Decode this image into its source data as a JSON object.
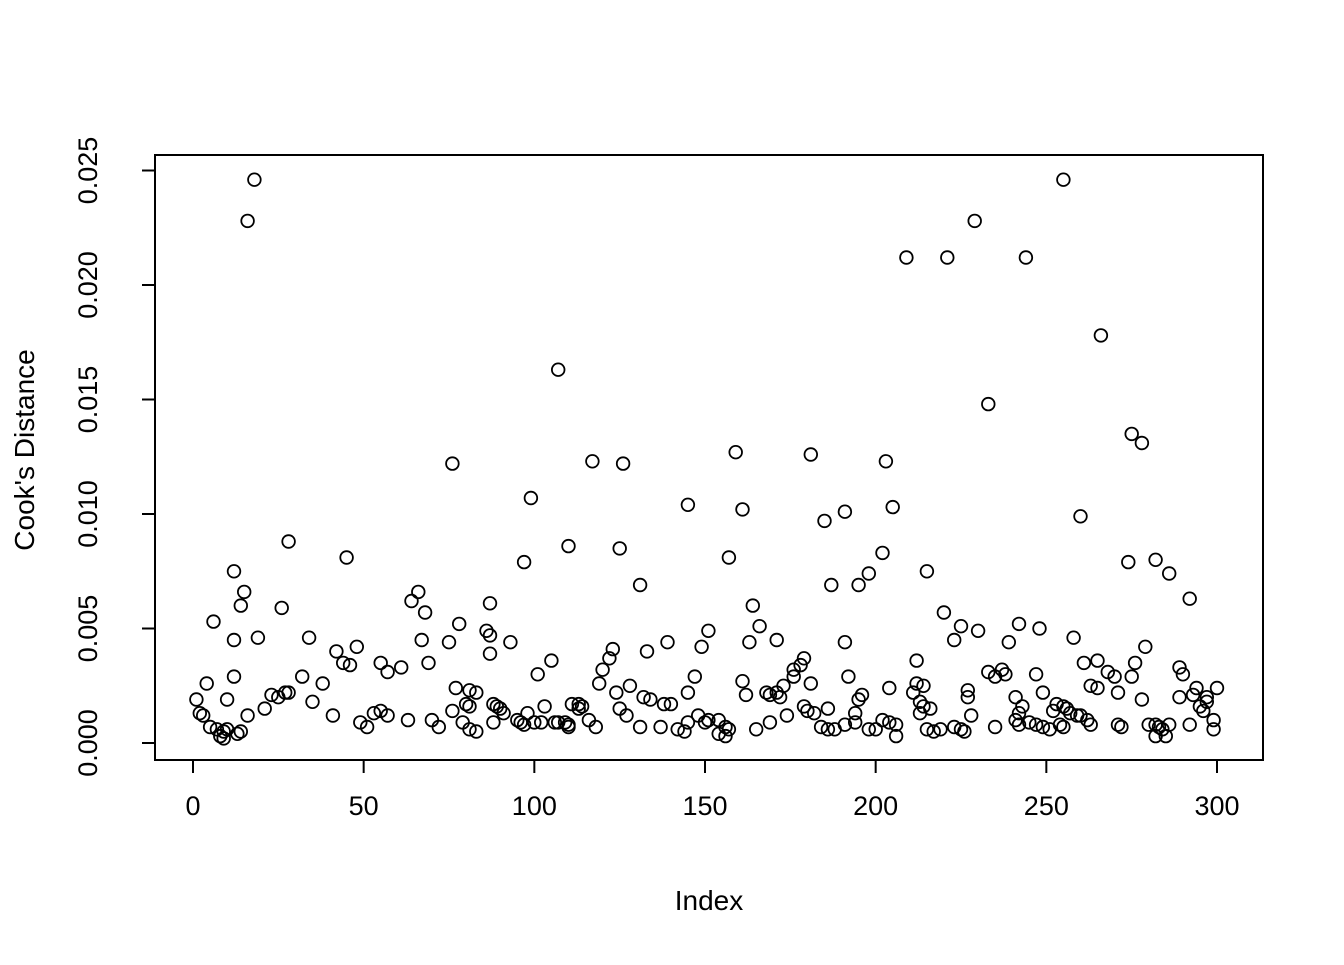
{
  "figure": {
    "background": "#ffffff",
    "frame_color": "#000000"
  },
  "chart_data": {
    "type": "scatter",
    "title": "",
    "xlabel": "Index",
    "ylabel": "Cook's Distance",
    "xlim": [
      0,
      300
    ],
    "ylim": [
      0,
      0.025
    ],
    "grid": false,
    "legend": null,
    "marker": "open-circle",
    "point_color": "#000000",
    "xticks": {
      "values": [
        0,
        50,
        100,
        150,
        200,
        250,
        300
      ],
      "labels": [
        "0",
        "50",
        "100",
        "150",
        "200",
        "250",
        "300"
      ]
    },
    "yticks": {
      "values": [
        0,
        0.005,
        0.01,
        0.015,
        0.02,
        0.025
      ],
      "labels": [
        "0.000",
        "0.005",
        "0.010",
        "0.015",
        "0.020",
        "0.025"
      ]
    },
    "points": [
      [
        1,
        0.0019
      ],
      [
        2,
        0.0013
      ],
      [
        3,
        0.0012
      ],
      [
        4,
        0.0026
      ],
      [
        5,
        0.0007
      ],
      [
        6,
        0.0053
      ],
      [
        7,
        0.0006
      ],
      [
        8,
        0.0003
      ],
      [
        9,
        0.0005
      ],
      [
        9,
        0.0002
      ],
      [
        10,
        0.0019
      ],
      [
        10,
        0.0006
      ],
      [
        12,
        0.0075
      ],
      [
        12,
        0.0045
      ],
      [
        12,
        0.0029
      ],
      [
        13,
        0.0004
      ],
      [
        14,
        0.006
      ],
      [
        14,
        0.0005
      ],
      [
        15,
        0.0066
      ],
      [
        16,
        0.0228
      ],
      [
        16,
        0.0012
      ],
      [
        18,
        0.0246
      ],
      [
        19,
        0.0046
      ],
      [
        21,
        0.0015
      ],
      [
        23,
        0.0021
      ],
      [
        25,
        0.002
      ],
      [
        26,
        0.0059
      ],
      [
        27,
        0.0022
      ],
      [
        28,
        0.0088
      ],
      [
        28,
        0.0022
      ],
      [
        32,
        0.0029
      ],
      [
        34,
        0.0046
      ],
      [
        35,
        0.0018
      ],
      [
        38,
        0.0026
      ],
      [
        41,
        0.0012
      ],
      [
        42,
        0.004
      ],
      [
        44,
        0.0035
      ],
      [
        45,
        0.0081
      ],
      [
        46,
        0.0034
      ],
      [
        48,
        0.0042
      ],
      [
        49,
        0.0009
      ],
      [
        51,
        0.0007
      ],
      [
        53,
        0.0013
      ],
      [
        55,
        0.0035
      ],
      [
        55,
        0.0014
      ],
      [
        57,
        0.0031
      ],
      [
        57,
        0.0012
      ],
      [
        61,
        0.0033
      ],
      [
        63,
        0.001
      ],
      [
        64,
        0.0062
      ],
      [
        66,
        0.0066
      ],
      [
        67,
        0.0045
      ],
      [
        68,
        0.0057
      ],
      [
        69,
        0.0035
      ],
      [
        70,
        0.001
      ],
      [
        72,
        0.0007
      ],
      [
        75,
        0.0044
      ],
      [
        76,
        0.0122
      ],
      [
        76,
        0.0014
      ],
      [
        77,
        0.0024
      ],
      [
        78,
        0.0052
      ],
      [
        79,
        0.0009
      ],
      [
        80,
        0.0017
      ],
      [
        81,
        0.0023
      ],
      [
        81,
        0.0016
      ],
      [
        81,
        0.0006
      ],
      [
        83,
        0.0022
      ],
      [
        83,
        0.0005
      ],
      [
        86,
        0.0049
      ],
      [
        87,
        0.0061
      ],
      [
        87,
        0.0047
      ],
      [
        87,
        0.0039
      ],
      [
        88,
        0.0017
      ],
      [
        88,
        0.0009
      ],
      [
        89,
        0.0016
      ],
      [
        90,
        0.0015
      ],
      [
        91,
        0.0013
      ],
      [
        93,
        0.0044
      ],
      [
        95,
        0.001
      ],
      [
        96,
        0.0009
      ],
      [
        97,
        0.0079
      ],
      [
        97,
        0.0008
      ],
      [
        98,
        0.0013
      ],
      [
        99,
        0.0107
      ],
      [
        100,
        0.0009
      ],
      [
        101,
        0.003
      ],
      [
        102,
        0.0009
      ],
      [
        103,
        0.0016
      ],
      [
        105,
        0.0036
      ],
      [
        106,
        0.0009
      ],
      [
        107,
        0.0163
      ],
      [
        107,
        0.0009
      ],
      [
        109,
        0.0009
      ],
      [
        110,
        0.0086
      ],
      [
        110,
        0.0008
      ],
      [
        110,
        0.0007
      ],
      [
        111,
        0.0017
      ],
      [
        113,
        0.0017
      ],
      [
        113,
        0.0015
      ],
      [
        114,
        0.0016
      ],
      [
        116,
        0.001
      ],
      [
        117,
        0.0123
      ],
      [
        118,
        0.0007
      ],
      [
        119,
        0.0026
      ],
      [
        120,
        0.0032
      ],
      [
        122,
        0.0037
      ],
      [
        123,
        0.0041
      ],
      [
        124,
        0.0022
      ],
      [
        125,
        0.0085
      ],
      [
        125,
        0.0015
      ],
      [
        126,
        0.0122
      ],
      [
        127,
        0.0012
      ],
      [
        128,
        0.0025
      ],
      [
        131,
        0.0069
      ],
      [
        131,
        0.0007
      ],
      [
        132,
        0.002
      ],
      [
        133,
        0.004
      ],
      [
        134,
        0.0019
      ],
      [
        137,
        0.0007
      ],
      [
        138,
        0.0017
      ],
      [
        139,
        0.0044
      ],
      [
        140,
        0.0017
      ],
      [
        142,
        0.0006
      ],
      [
        144,
        0.0005
      ],
      [
        145,
        0.0104
      ],
      [
        145,
        0.0022
      ],
      [
        145,
        0.0009
      ],
      [
        147,
        0.0029
      ],
      [
        148,
        0.0012
      ],
      [
        149,
        0.0042
      ],
      [
        150,
        0.0009
      ],
      [
        151,
        0.0049
      ],
      [
        151,
        0.001
      ],
      [
        154,
        0.001
      ],
      [
        154,
        0.0004
      ],
      [
        156,
        0.0007
      ],
      [
        156,
        0.0003
      ],
      [
        157,
        0.0081
      ],
      [
        157,
        0.0006
      ],
      [
        159,
        0.0127
      ],
      [
        161,
        0.0102
      ],
      [
        161,
        0.0027
      ],
      [
        162,
        0.0021
      ],
      [
        163,
        0.0044
      ],
      [
        164,
        0.006
      ],
      [
        165,
        0.0006
      ],
      [
        166,
        0.0051
      ],
      [
        168,
        0.0022
      ],
      [
        169,
        0.0021
      ],
      [
        169,
        0.0009
      ],
      [
        171,
        0.0045
      ],
      [
        171,
        0.0022
      ],
      [
        172,
        0.002
      ],
      [
        173,
        0.0025
      ],
      [
        174,
        0.0012
      ],
      [
        176,
        0.0032
      ],
      [
        176,
        0.0029
      ],
      [
        178,
        0.0034
      ],
      [
        179,
        0.0037
      ],
      [
        179,
        0.0016
      ],
      [
        180,
        0.0014
      ],
      [
        181,
        0.0126
      ],
      [
        181,
        0.0026
      ],
      [
        182,
        0.0013
      ],
      [
        184,
        0.0007
      ],
      [
        185,
        0.0097
      ],
      [
        186,
        0.0015
      ],
      [
        186,
        0.0006
      ],
      [
        187,
        0.0069
      ],
      [
        188,
        0.0006
      ],
      [
        191,
        0.0101
      ],
      [
        191,
        0.0044
      ],
      [
        191,
        0.0008
      ],
      [
        192,
        0.0029
      ],
      [
        194,
        0.0013
      ],
      [
        194,
        0.0009
      ],
      [
        195,
        0.0069
      ],
      [
        195,
        0.0019
      ],
      [
        196,
        0.0021
      ],
      [
        198,
        0.0074
      ],
      [
        198,
        0.0006
      ],
      [
        200,
        0.0006
      ],
      [
        202,
        0.0083
      ],
      [
        202,
        0.001
      ],
      [
        203,
        0.0123
      ],
      [
        204,
        0.0024
      ],
      [
        204,
        0.0009
      ],
      [
        205,
        0.0103
      ],
      [
        206,
        0.0008
      ],
      [
        206,
        0.0003
      ],
      [
        209,
        0.0212
      ],
      [
        211,
        0.0022
      ],
      [
        212,
        0.0036
      ],
      [
        212,
        0.0026
      ],
      [
        213,
        0.0018
      ],
      [
        213,
        0.0013
      ],
      [
        214,
        0.0025
      ],
      [
        214,
        0.0016
      ],
      [
        215,
        0.0075
      ],
      [
        215,
        0.0006
      ],
      [
        216,
        0.0015
      ],
      [
        217,
        0.0005
      ],
      [
        219,
        0.0006
      ],
      [
        220,
        0.0057
      ],
      [
        221,
        0.0212
      ],
      [
        223,
        0.0045
      ],
      [
        223,
        0.0007
      ],
      [
        225,
        0.0051
      ],
      [
        225,
        0.0006
      ],
      [
        226,
        0.0005
      ],
      [
        227,
        0.0023
      ],
      [
        227,
        0.002
      ],
      [
        228,
        0.0012
      ],
      [
        229,
        0.0228
      ],
      [
        230,
        0.0049
      ],
      [
        233,
        0.0148
      ],
      [
        233,
        0.0031
      ],
      [
        235,
        0.0029
      ],
      [
        235,
        0.0007
      ],
      [
        237,
        0.0032
      ],
      [
        238,
        0.003
      ],
      [
        239,
        0.0044
      ],
      [
        241,
        0.002
      ],
      [
        241,
        0.001
      ],
      [
        242,
        0.0052
      ],
      [
        242,
        0.0013
      ],
      [
        242,
        0.0008
      ],
      [
        243,
        0.0016
      ],
      [
        244,
        0.0212
      ],
      [
        245,
        0.0009
      ],
      [
        247,
        0.003
      ],
      [
        247,
        0.0008
      ],
      [
        248,
        0.005
      ],
      [
        249,
        0.0022
      ],
      [
        249,
        0.0007
      ],
      [
        251,
        0.0006
      ],
      [
        252,
        0.0014
      ],
      [
        253,
        0.0017
      ],
      [
        254,
        0.0008
      ],
      [
        255,
        0.0246
      ],
      [
        255,
        0.0016
      ],
      [
        255,
        0.0007
      ],
      [
        256,
        0.0015
      ],
      [
        257,
        0.0013
      ],
      [
        258,
        0.0046
      ],
      [
        259,
        0.0012
      ],
      [
        260,
        0.0099
      ],
      [
        260,
        0.0012
      ],
      [
        261,
        0.0035
      ],
      [
        262,
        0.001
      ],
      [
        263,
        0.0025
      ],
      [
        263,
        0.0008
      ],
      [
        265,
        0.0036
      ],
      [
        265,
        0.0024
      ],
      [
        266,
        0.0178
      ],
      [
        268,
        0.0031
      ],
      [
        270,
        0.0029
      ],
      [
        271,
        0.0022
      ],
      [
        271,
        0.0008
      ],
      [
        272,
        0.0007
      ],
      [
        274,
        0.0079
      ],
      [
        275,
        0.0135
      ],
      [
        275,
        0.0029
      ],
      [
        276,
        0.0035
      ],
      [
        278,
        0.0131
      ],
      [
        278,
        0.0019
      ],
      [
        279,
        0.0042
      ],
      [
        280,
        0.0008
      ],
      [
        282,
        0.008
      ],
      [
        282,
        0.0008
      ],
      [
        282,
        0.0003
      ],
      [
        283,
        0.0007
      ],
      [
        284,
        0.0006
      ],
      [
        285,
        0.0003
      ],
      [
        286,
        0.0074
      ],
      [
        286,
        0.0008
      ],
      [
        289,
        0.0033
      ],
      [
        289,
        0.002
      ],
      [
        290,
        0.003
      ],
      [
        292,
        0.0063
      ],
      [
        292,
        0.0008
      ],
      [
        293,
        0.0021
      ],
      [
        294,
        0.0024
      ],
      [
        295,
        0.0016
      ],
      [
        296,
        0.0014
      ],
      [
        297,
        0.002
      ],
      [
        297,
        0.0018
      ],
      [
        299,
        0.001
      ],
      [
        299,
        0.0006
      ],
      [
        300,
        0.0024
      ]
    ]
  }
}
